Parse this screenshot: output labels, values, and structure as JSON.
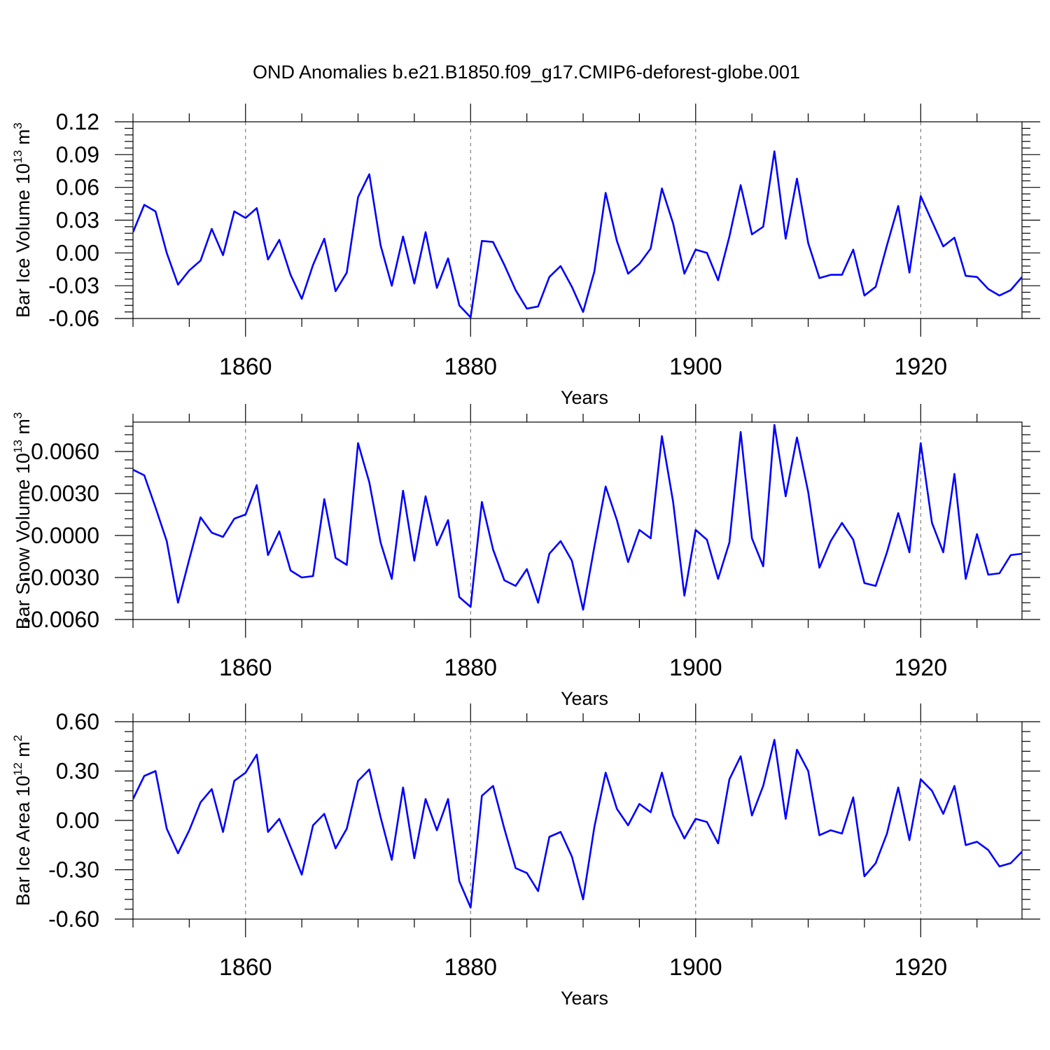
{
  "title": "OND Anomalies b.e21.B1850.f09_g17.CMIP6-deforest-globe.001",
  "colors": {
    "line": "#0000ff",
    "grid": "#777777"
  },
  "chart_data": [
    {
      "type": "line",
      "title": "",
      "xlabel": "Years",
      "ylabel_main": "Bar Ice Volume 10",
      "ylabel_exp": "13",
      "ylabel_unit": " m",
      "ylabel_unit_exp": "3",
      "xlim": [
        1850,
        1929
      ],
      "ylim": [
        -0.06,
        0.12
      ],
      "yticks": [
        -0.06,
        -0.03,
        0.0,
        0.03,
        0.06,
        0.09,
        0.12
      ],
      "ytick_labels": [
        "-0.06",
        "-0.03",
        "0.00",
        "0.03",
        "0.06",
        "0.09",
        "0.12"
      ],
      "xticks": [
        1860,
        1880,
        1900,
        1920
      ],
      "xtick_labels": [
        "1860",
        "1880",
        "1900",
        "1920"
      ],
      "x_start": 1850,
      "series": [
        {
          "name": "Bar Ice Volume",
          "values": [
            0.019,
            0.044,
            0.038,
            0.0,
            -0.029,
            -0.016,
            -0.007,
            0.022,
            -0.002,
            0.038,
            0.032,
            0.041,
            -0.006,
            0.012,
            -0.02,
            -0.042,
            -0.011,
            0.013,
            -0.035,
            -0.018,
            0.051,
            0.072,
            0.007,
            -0.03,
            0.015,
            -0.028,
            0.019,
            -0.032,
            -0.005,
            -0.048,
            -0.059,
            0.011,
            0.01,
            -0.011,
            -0.034,
            -0.051,
            -0.049,
            -0.022,
            -0.012,
            -0.031,
            -0.054,
            -0.017,
            0.055,
            0.011,
            -0.019,
            -0.01,
            0.004,
            0.059,
            0.027,
            -0.019,
            0.003,
            0.0,
            -0.025,
            0.015,
            0.062,
            0.017,
            0.024,
            0.093,
            0.013,
            0.068,
            0.009,
            -0.023,
            -0.02,
            -0.02,
            0.003,
            -0.039,
            -0.031,
            0.007,
            0.043,
            -0.018,
            0.052,
            0.029,
            0.006,
            0.014,
            -0.021,
            -0.022,
            -0.033,
            -0.039,
            -0.034,
            -0.022
          ]
        }
      ]
    },
    {
      "type": "line",
      "title": "",
      "xlabel": "Years",
      "ylabel_main": "Bar Snow Volume 10",
      "ylabel_exp": "13",
      "ylabel_unit": " m",
      "ylabel_unit_exp": "3",
      "xlim": [
        1850,
        1929
      ],
      "ylim": [
        -0.006,
        0.0081
      ],
      "yticks": [
        -0.006,
        -0.003,
        0.0,
        0.003,
        0.006
      ],
      "ytick_labels": [
        "-0.0060",
        "-0.0030",
        "0.0000",
        "0.0030",
        "0.0060"
      ],
      "xticks": [
        1860,
        1880,
        1900,
        1920
      ],
      "xtick_labels": [
        "1860",
        "1880",
        "1900",
        "1920"
      ],
      "x_start": 1850,
      "series": [
        {
          "name": "Bar Snow Volume",
          "values": [
            0.0047,
            0.0043,
            0.002,
            -0.0004,
            -0.0048,
            -0.0017,
            0.0013,
            0.0002,
            -0.0001,
            0.0012,
            0.0015,
            0.0036,
            -0.0014,
            0.0003,
            -0.0025,
            -0.003,
            -0.0029,
            0.0026,
            -0.0016,
            -0.0021,
            0.0066,
            0.0038,
            -0.0005,
            -0.0031,
            0.0032,
            -0.0018,
            0.0028,
            -0.0007,
            0.0011,
            -0.0044,
            -0.0051,
            0.0024,
            -0.001,
            -0.0032,
            -0.0036,
            -0.0024,
            -0.0048,
            -0.0013,
            -0.0004,
            -0.0018,
            -0.0053,
            -0.0008,
            0.0035,
            0.0011,
            -0.0019,
            0.0004,
            -0.0002,
            0.0071,
            0.0024,
            -0.0043,
            0.0004,
            -0.0003,
            -0.0031,
            -0.0005,
            0.0074,
            -0.0002,
            -0.0022,
            0.0079,
            0.0028,
            0.007,
            0.0031,
            -0.0023,
            -0.0004,
            0.0009,
            -0.0003,
            -0.0034,
            -0.0036,
            -0.0012,
            0.0016,
            -0.0012,
            0.0066,
            0.0009,
            -0.0012,
            0.0044,
            -0.0031,
            0.0001,
            -0.0028,
            -0.0027,
            -0.0014,
            -0.0013
          ]
        }
      ]
    },
    {
      "type": "line",
      "title": "",
      "xlabel": "Years",
      "ylabel_main": "Bar Ice Area 10",
      "ylabel_exp": "12",
      "ylabel_unit": " m",
      "ylabel_unit_exp": "2",
      "xlim": [
        1850,
        1929
      ],
      "ylim": [
        -0.6,
        0.6
      ],
      "yticks": [
        -0.6,
        -0.3,
        0.0,
        0.3,
        0.6
      ],
      "ytick_labels": [
        "-0.60",
        "-0.30",
        "0.00",
        "0.30",
        "0.60"
      ],
      "xticks": [
        1860,
        1880,
        1900,
        1920
      ],
      "xtick_labels": [
        "1860",
        "1880",
        "1900",
        "1920"
      ],
      "x_start": 1850,
      "series": [
        {
          "name": "Bar Ice Area",
          "values": [
            0.13,
            0.27,
            0.3,
            -0.05,
            -0.2,
            -0.06,
            0.11,
            0.19,
            -0.07,
            0.24,
            0.29,
            0.4,
            -0.07,
            0.01,
            -0.16,
            -0.33,
            -0.03,
            0.04,
            -0.17,
            -0.05,
            0.24,
            0.31,
            0.02,
            -0.24,
            0.2,
            -0.23,
            0.13,
            -0.06,
            0.13,
            -0.37,
            -0.53,
            0.15,
            0.21,
            -0.05,
            -0.29,
            -0.32,
            -0.43,
            -0.1,
            -0.07,
            -0.22,
            -0.48,
            -0.04,
            0.29,
            0.07,
            -0.03,
            0.1,
            0.05,
            0.29,
            0.03,
            -0.11,
            0.01,
            -0.01,
            -0.14,
            0.25,
            0.39,
            0.03,
            0.21,
            0.49,
            0.01,
            0.43,
            0.3,
            -0.09,
            -0.06,
            -0.08,
            0.14,
            -0.34,
            -0.26,
            -0.08,
            0.2,
            -0.12,
            0.25,
            0.18,
            0.04,
            0.21,
            -0.15,
            -0.13,
            -0.18,
            -0.28,
            -0.26,
            -0.19
          ]
        }
      ]
    }
  ]
}
